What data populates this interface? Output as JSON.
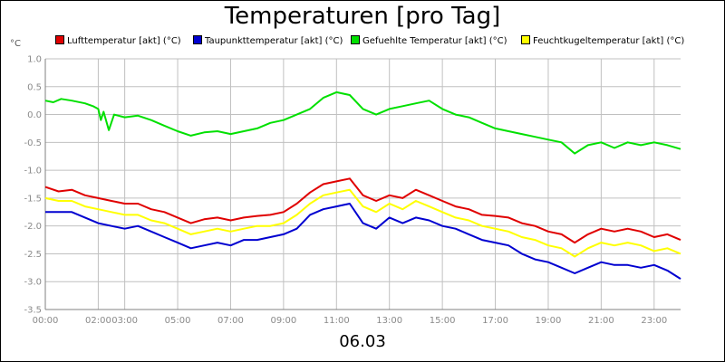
{
  "chart_data": {
    "type": "line",
    "title": "Temperaturen [pro Tag]",
    "ylabel": "°C",
    "xlabel": "06.03",
    "ylim": [
      -3.5,
      1.0
    ],
    "xlim": [
      0,
      24
    ],
    "grid": true,
    "legend_position": "top",
    "y_ticks": [
      1.0,
      0.5,
      0.0,
      -0.5,
      -1.0,
      -1.5,
      -2.0,
      -2.5,
      -3.0,
      -3.5
    ],
    "y_tick_labels": [
      "1.0",
      "0.5",
      "0.0",
      "-0.5",
      "-1.0",
      "-1.5",
      "-2.0",
      "-2.5",
      "-3.0",
      "-3.5"
    ],
    "x_ticks": [
      0,
      2,
      3,
      5,
      7,
      9,
      11,
      13,
      15,
      17,
      19,
      21,
      23
    ],
    "x_tick_labels": [
      "00:00",
      "02:00",
      "03:00",
      "05:00",
      "07:00",
      "09:00",
      "11:00",
      "13:00",
      "15:00",
      "17:00",
      "19:00",
      "21:00",
      "23:00"
    ],
    "series": [
      {
        "name": "Lufttemperatur [akt] (°C)",
        "color": "#e00000",
        "points": [
          [
            0.0,
            -1.3
          ],
          [
            0.5,
            -1.38
          ],
          [
            1.0,
            -1.35
          ],
          [
            1.5,
            -1.45
          ],
          [
            2.0,
            -1.5
          ],
          [
            2.5,
            -1.55
          ],
          [
            3.0,
            -1.6
          ],
          [
            3.5,
            -1.6
          ],
          [
            4.0,
            -1.7
          ],
          [
            4.5,
            -1.75
          ],
          [
            5.0,
            -1.85
          ],
          [
            5.5,
            -1.95
          ],
          [
            6.0,
            -1.88
          ],
          [
            6.5,
            -1.85
          ],
          [
            7.0,
            -1.9
          ],
          [
            7.5,
            -1.85
          ],
          [
            8.0,
            -1.82
          ],
          [
            8.5,
            -1.8
          ],
          [
            9.0,
            -1.75
          ],
          [
            9.5,
            -1.6
          ],
          [
            10.0,
            -1.4
          ],
          [
            10.5,
            -1.25
          ],
          [
            11.0,
            -1.2
          ],
          [
            11.5,
            -1.15
          ],
          [
            12.0,
            -1.45
          ],
          [
            12.5,
            -1.55
          ],
          [
            13.0,
            -1.45
          ],
          [
            13.5,
            -1.5
          ],
          [
            14.0,
            -1.35
          ],
          [
            14.5,
            -1.45
          ],
          [
            15.0,
            -1.55
          ],
          [
            15.5,
            -1.65
          ],
          [
            16.0,
            -1.7
          ],
          [
            16.5,
            -1.8
          ],
          [
            17.0,
            -1.82
          ],
          [
            17.5,
            -1.85
          ],
          [
            18.0,
            -1.95
          ],
          [
            18.5,
            -2.0
          ],
          [
            19.0,
            -2.1
          ],
          [
            19.5,
            -2.15
          ],
          [
            20.0,
            -2.3
          ],
          [
            20.5,
            -2.15
          ],
          [
            21.0,
            -2.05
          ],
          [
            21.5,
            -2.1
          ],
          [
            22.0,
            -2.05
          ],
          [
            22.5,
            -2.1
          ],
          [
            23.0,
            -2.2
          ],
          [
            23.5,
            -2.15
          ],
          [
            24.0,
            -2.25
          ]
        ]
      },
      {
        "name": "Taupunkttemperatur [akt] (°C)",
        "color": "#0000d0",
        "points": [
          [
            0.0,
            -1.75
          ],
          [
            0.5,
            -1.75
          ],
          [
            1.0,
            -1.75
          ],
          [
            1.5,
            -1.85
          ],
          [
            2.0,
            -1.95
          ],
          [
            2.5,
            -2.0
          ],
          [
            3.0,
            -2.05
          ],
          [
            3.5,
            -2.0
          ],
          [
            4.0,
            -2.1
          ],
          [
            4.5,
            -2.2
          ],
          [
            5.0,
            -2.3
          ],
          [
            5.5,
            -2.4
          ],
          [
            6.0,
            -2.35
          ],
          [
            6.5,
            -2.3
          ],
          [
            7.0,
            -2.35
          ],
          [
            7.5,
            -2.25
          ],
          [
            8.0,
            -2.25
          ],
          [
            8.5,
            -2.2
          ],
          [
            9.0,
            -2.15
          ],
          [
            9.5,
            -2.05
          ],
          [
            10.0,
            -1.8
          ],
          [
            10.5,
            -1.7
          ],
          [
            11.0,
            -1.65
          ],
          [
            11.5,
            -1.6
          ],
          [
            12.0,
            -1.95
          ],
          [
            12.5,
            -2.05
          ],
          [
            13.0,
            -1.85
          ],
          [
            13.5,
            -1.95
          ],
          [
            14.0,
            -1.85
          ],
          [
            14.5,
            -1.9
          ],
          [
            15.0,
            -2.0
          ],
          [
            15.5,
            -2.05
          ],
          [
            16.0,
            -2.15
          ],
          [
            16.5,
            -2.25
          ],
          [
            17.0,
            -2.3
          ],
          [
            17.5,
            -2.35
          ],
          [
            18.0,
            -2.5
          ],
          [
            18.5,
            -2.6
          ],
          [
            19.0,
            -2.65
          ],
          [
            19.5,
            -2.75
          ],
          [
            20.0,
            -2.85
          ],
          [
            20.5,
            -2.75
          ],
          [
            21.0,
            -2.65
          ],
          [
            21.5,
            -2.7
          ],
          [
            22.0,
            -2.7
          ],
          [
            22.5,
            -2.75
          ],
          [
            23.0,
            -2.7
          ],
          [
            23.5,
            -2.8
          ],
          [
            24.0,
            -2.95
          ]
        ]
      },
      {
        "name": "Gefuehlte Temperatur [akt] (°C)",
        "color": "#00e000",
        "points": [
          [
            0.0,
            0.25
          ],
          [
            0.3,
            0.22
          ],
          [
            0.6,
            0.28
          ],
          [
            1.0,
            0.25
          ],
          [
            1.5,
            0.2
          ],
          [
            1.8,
            0.15
          ],
          [
            2.0,
            0.1
          ],
          [
            2.1,
            -0.1
          ],
          [
            2.2,
            0.05
          ],
          [
            2.4,
            -0.28
          ],
          [
            2.6,
            0.0
          ],
          [
            3.0,
            -0.05
          ],
          [
            3.5,
            -0.02
          ],
          [
            4.0,
            -0.1
          ],
          [
            4.5,
            -0.2
          ],
          [
            5.0,
            -0.3
          ],
          [
            5.5,
            -0.38
          ],
          [
            6.0,
            -0.32
          ],
          [
            6.5,
            -0.3
          ],
          [
            7.0,
            -0.35
          ],
          [
            7.5,
            -0.3
          ],
          [
            8.0,
            -0.25
          ],
          [
            8.5,
            -0.15
          ],
          [
            9.0,
            -0.1
          ],
          [
            9.5,
            0.0
          ],
          [
            10.0,
            0.1
          ],
          [
            10.5,
            0.3
          ],
          [
            11.0,
            0.4
          ],
          [
            11.5,
            0.35
          ],
          [
            12.0,
            0.1
          ],
          [
            12.5,
            0.0
          ],
          [
            13.0,
            0.1
          ],
          [
            13.5,
            0.15
          ],
          [
            14.0,
            0.2
          ],
          [
            14.5,
            0.25
          ],
          [
            15.0,
            0.1
          ],
          [
            15.5,
            0.0
          ],
          [
            16.0,
            -0.05
          ],
          [
            16.5,
            -0.15
          ],
          [
            17.0,
            -0.25
          ],
          [
            17.5,
            -0.3
          ],
          [
            18.0,
            -0.35
          ],
          [
            18.5,
            -0.4
          ],
          [
            19.0,
            -0.45
          ],
          [
            19.5,
            -0.5
          ],
          [
            20.0,
            -0.7
          ],
          [
            20.5,
            -0.55
          ],
          [
            21.0,
            -0.5
          ],
          [
            21.5,
            -0.6
          ],
          [
            22.0,
            -0.5
          ],
          [
            22.5,
            -0.55
          ],
          [
            23.0,
            -0.5
          ],
          [
            23.5,
            -0.55
          ],
          [
            24.0,
            -0.62
          ]
        ]
      },
      {
        "name": "Feuchtkugeltemperatur [akt] (°C)",
        "color": "#ffff00",
        "points": [
          [
            0.0,
            -1.5
          ],
          [
            0.5,
            -1.55
          ],
          [
            1.0,
            -1.55
          ],
          [
            1.5,
            -1.65
          ],
          [
            2.0,
            -1.7
          ],
          [
            2.5,
            -1.75
          ],
          [
            3.0,
            -1.8
          ],
          [
            3.5,
            -1.8
          ],
          [
            4.0,
            -1.9
          ],
          [
            4.5,
            -1.95
          ],
          [
            5.0,
            -2.05
          ],
          [
            5.5,
            -2.15
          ],
          [
            6.0,
            -2.1
          ],
          [
            6.5,
            -2.05
          ],
          [
            7.0,
            -2.1
          ],
          [
            7.5,
            -2.05
          ],
          [
            8.0,
            -2.0
          ],
          [
            8.5,
            -2.0
          ],
          [
            9.0,
            -1.95
          ],
          [
            9.5,
            -1.8
          ],
          [
            10.0,
            -1.6
          ],
          [
            10.5,
            -1.45
          ],
          [
            11.0,
            -1.4
          ],
          [
            11.5,
            -1.35
          ],
          [
            12.0,
            -1.65
          ],
          [
            12.5,
            -1.75
          ],
          [
            13.0,
            -1.6
          ],
          [
            13.5,
            -1.7
          ],
          [
            14.0,
            -1.55
          ],
          [
            14.5,
            -1.65
          ],
          [
            15.0,
            -1.75
          ],
          [
            15.5,
            -1.85
          ],
          [
            16.0,
            -1.9
          ],
          [
            16.5,
            -2.0
          ],
          [
            17.0,
            -2.05
          ],
          [
            17.5,
            -2.1
          ],
          [
            18.0,
            -2.2
          ],
          [
            18.5,
            -2.25
          ],
          [
            19.0,
            -2.35
          ],
          [
            19.5,
            -2.4
          ],
          [
            20.0,
            -2.55
          ],
          [
            20.5,
            -2.4
          ],
          [
            21.0,
            -2.3
          ],
          [
            21.5,
            -2.35
          ],
          [
            22.0,
            -2.3
          ],
          [
            22.5,
            -2.35
          ],
          [
            23.0,
            -2.45
          ],
          [
            23.5,
            -2.4
          ],
          [
            24.0,
            -2.5
          ]
        ]
      }
    ]
  }
}
